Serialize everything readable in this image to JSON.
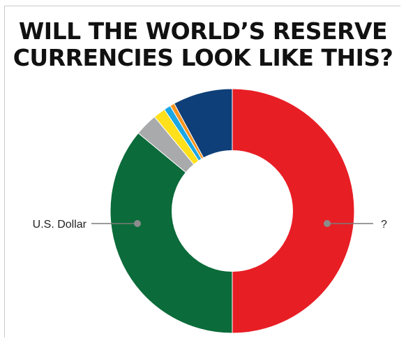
{
  "title": {
    "line1": "WILL THE WORLD’S RESERVE",
    "line2": "CURRENCIES LOOK LIKE THIS?"
  },
  "chart_data": {
    "type": "pie",
    "variant": "donut",
    "title": "WILL THE WORLD’S RESERVE CURRENCIES LOOK LIKE THIS?",
    "slices": [
      {
        "label": "?",
        "value": 50.0,
        "color": "#e81e25"
      },
      {
        "label": "U.S. Dollar",
        "value": 36.0,
        "color": "#0b6b3a"
      },
      {
        "label": "",
        "value": 3.0,
        "color": "#a9aaac"
      },
      {
        "label": "",
        "value": 1.6,
        "color": "#ffe01b"
      },
      {
        "label": "",
        "value": 0.9,
        "color": "#1ba7e3"
      },
      {
        "label": "",
        "value": 0.6,
        "color": "#f7941d"
      },
      {
        "label": "",
        "value": 7.9,
        "color": "#0e3f78"
      }
    ],
    "start": "top",
    "direction": "clockwise",
    "callouts": [
      {
        "slice": 0,
        "text": "?",
        "side": "right"
      },
      {
        "slice": 1,
        "text": "U.S. Dollar",
        "side": "left"
      }
    ],
    "legend": "none"
  }
}
